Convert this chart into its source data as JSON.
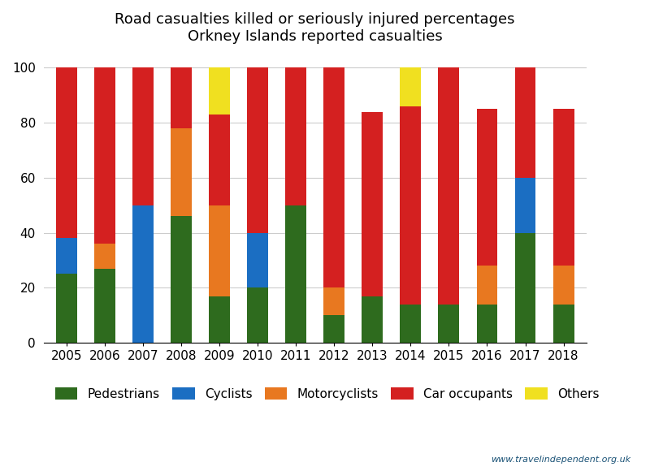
{
  "years": [
    2005,
    2006,
    2007,
    2008,
    2009,
    2010,
    2011,
    2012,
    2013,
    2014,
    2015,
    2016,
    2017,
    2018
  ],
  "pedestrians": [
    25,
    27,
    0,
    46,
    17,
    20,
    50,
    10,
    17,
    14,
    14,
    14,
    40,
    14
  ],
  "cyclists": [
    13,
    0,
    50,
    0,
    0,
    20,
    0,
    0,
    0,
    0,
    0,
    0,
    20,
    0
  ],
  "motorcyclists": [
    0,
    9,
    0,
    32,
    33,
    0,
    0,
    10,
    0,
    0,
    0,
    14,
    0,
    14
  ],
  "car_occupants": [
    62,
    64,
    50,
    22,
    33,
    60,
    50,
    80,
    67,
    72,
    86,
    57,
    40,
    57
  ],
  "others": [
    0,
    0,
    0,
    0,
    17,
    0,
    0,
    0,
    0,
    14,
    0,
    0,
    0,
    0
  ],
  "colors": {
    "pedestrians": "#2e6b1e",
    "cyclists": "#1b6ec2",
    "motorcyclists": "#e87820",
    "car_occupants": "#d42020",
    "others": "#f0e020"
  },
  "title_line1": "Road casualties killed or seriously injured percentages",
  "title_line2": "Orkney Islands reported casualties",
  "watermark": "www.travelindependent.org.uk",
  "ylim": [
    0,
    105
  ],
  "bar_width": 0.55,
  "legend_labels": [
    "Pedestrians",
    "Cyclists",
    "Motorcyclists",
    "Car occupants",
    "Others"
  ],
  "figsize": [
    8.0,
    5.8
  ],
  "dpi": 100
}
